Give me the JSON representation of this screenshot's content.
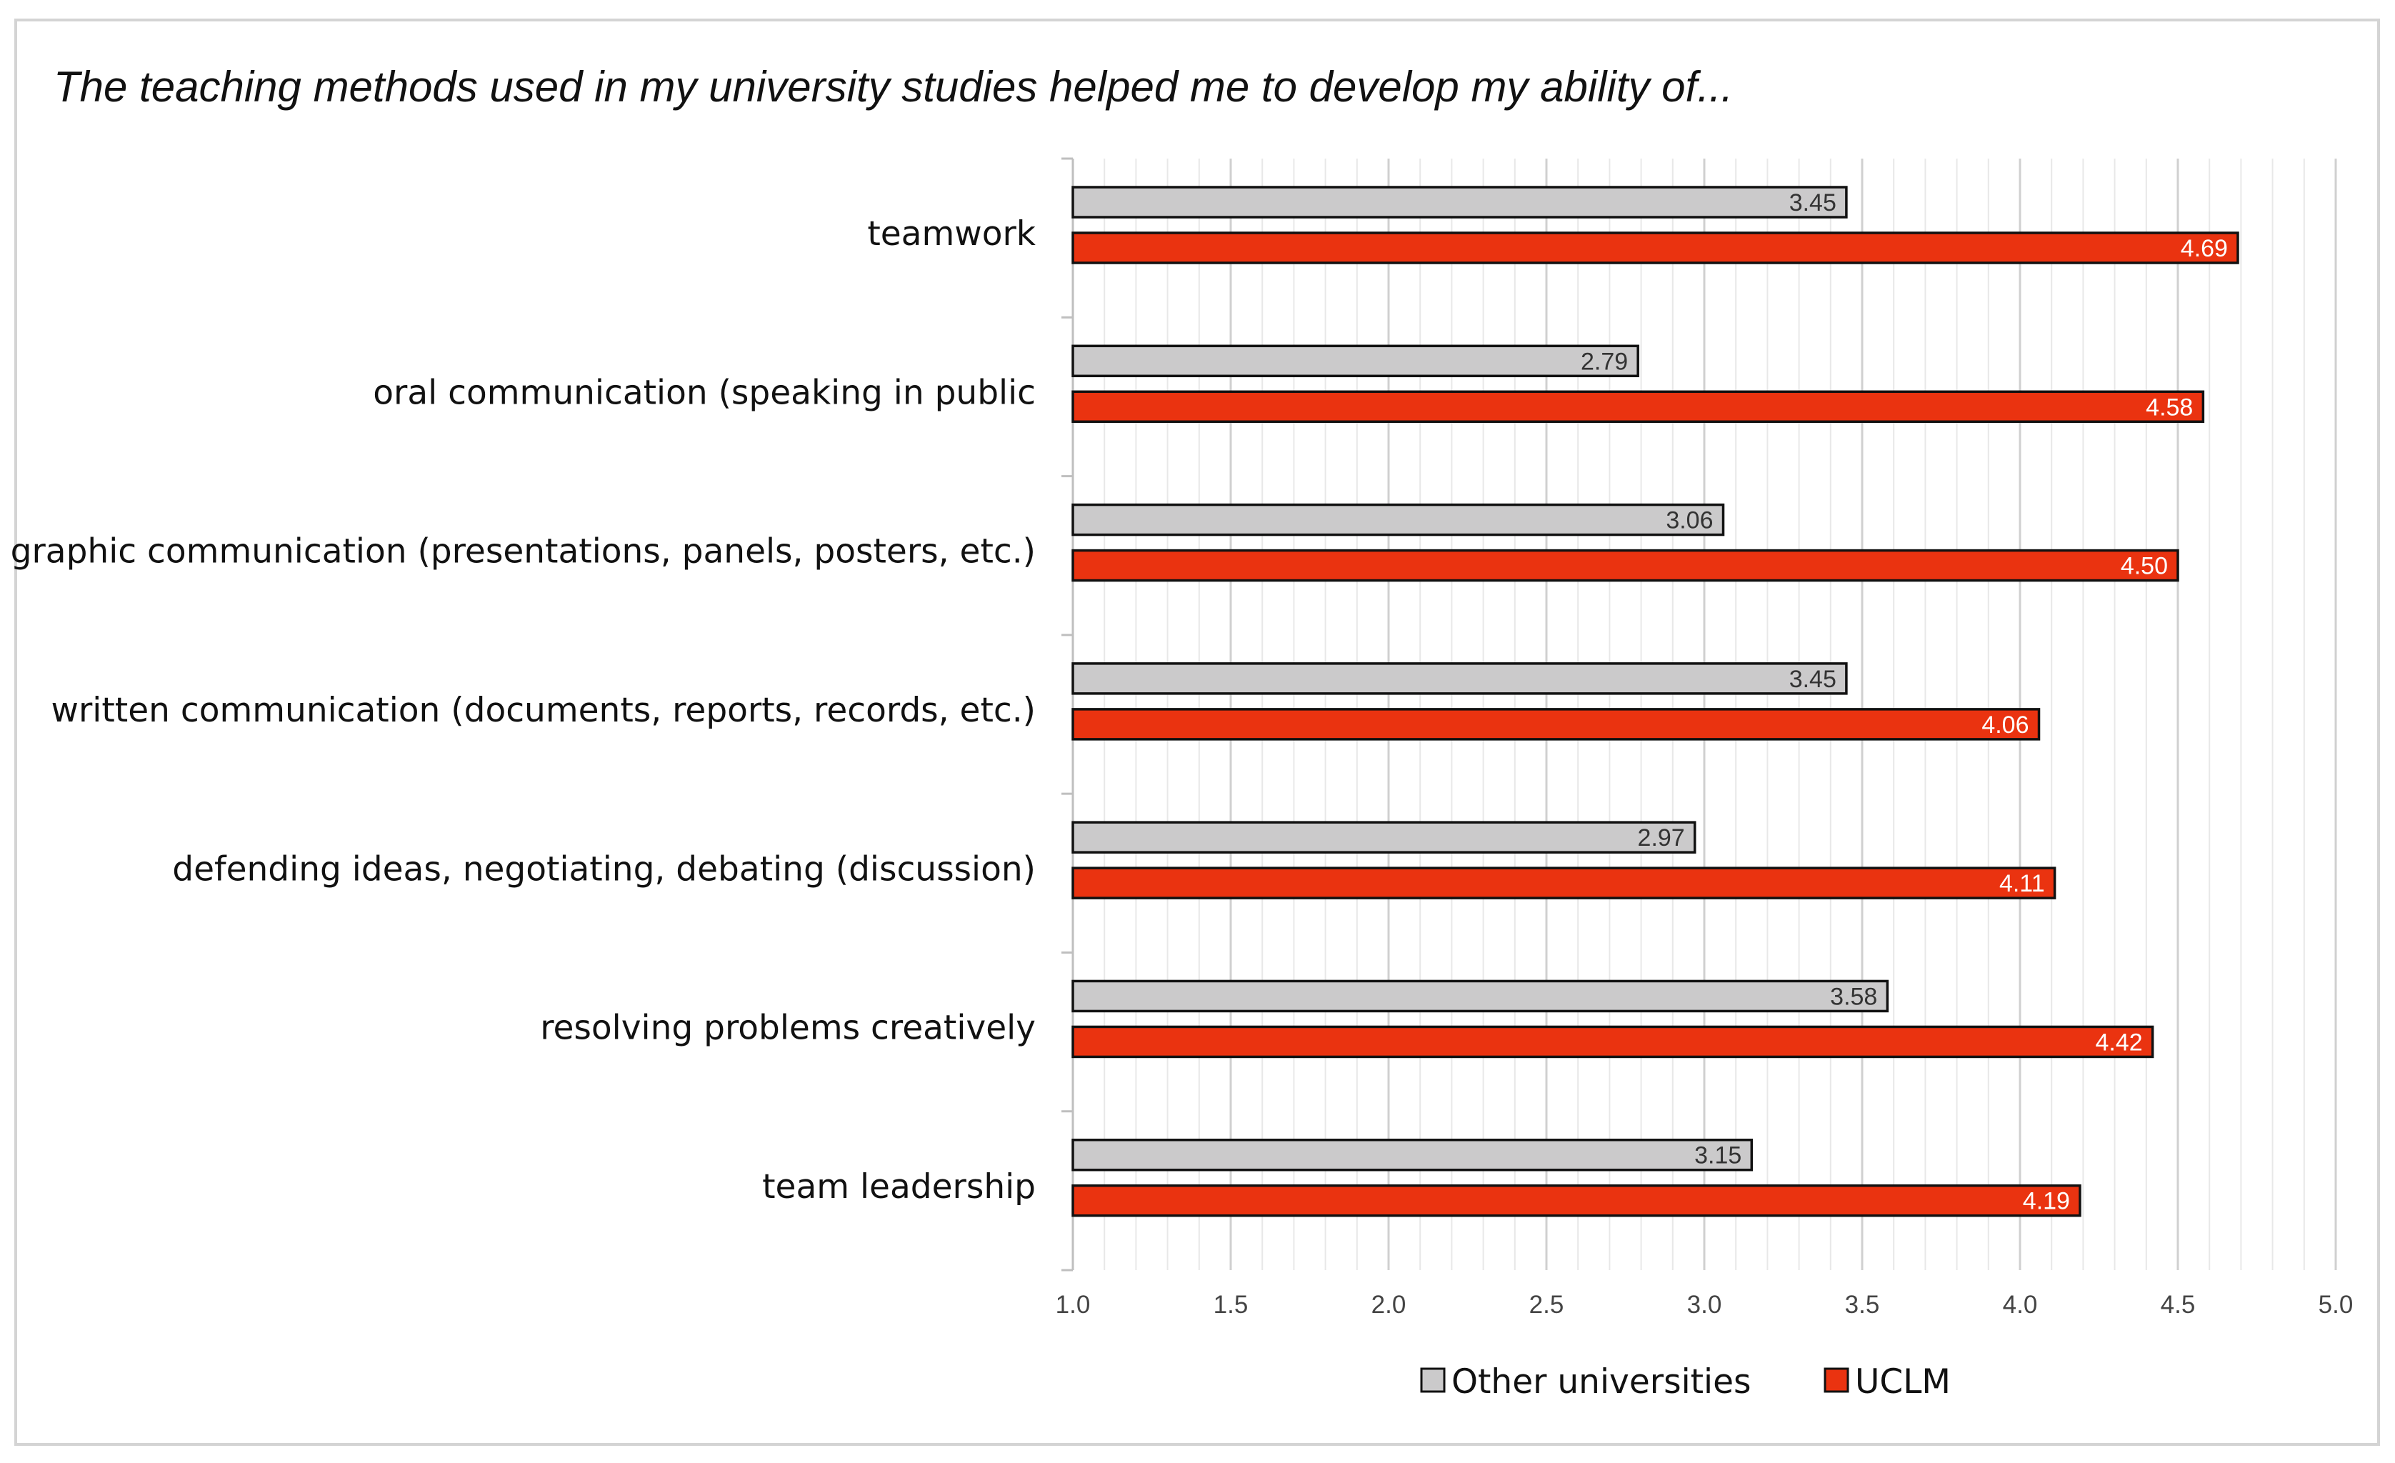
{
  "chart_data": {
    "type": "bar",
    "orientation": "horizontal",
    "title": "The teaching methods used in my university studies helped me to develop my ability of...",
    "categories": [
      "teamwork",
      "oral communication (speaking in public",
      "graphic communication (presentations, panels, posters, etc.)",
      "written communication (documents, reports, records, etc.)",
      "defending ideas, negotiating, debating (discussion)",
      "resolving problems creatively",
      "team leadership"
    ],
    "series": [
      {
        "name": "Other universities",
        "color": "#cbcacb",
        "label_color": "#333333",
        "values": [
          3.45,
          2.79,
          3.06,
          3.45,
          2.97,
          3.58,
          3.15
        ],
        "labels": [
          "3.45",
          "2.79",
          "3.06",
          "3.45",
          "2.97",
          "3.58",
          "3.15"
        ]
      },
      {
        "name": "UCLM",
        "color": "#ea3310",
        "label_color": "#ffffff",
        "values": [
          4.69,
          4.58,
          4.5,
          4.06,
          4.11,
          4.42,
          4.19
        ],
        "labels": [
          "4.69",
          "4.58",
          "4.50",
          "4.06",
          "4.11",
          "4.42",
          "4.19"
        ]
      }
    ],
    "xlim": [
      1.0,
      5.0
    ],
    "xticks": [
      1.0,
      1.5,
      2.0,
      2.5,
      3.0,
      3.5,
      4.0,
      4.5,
      5.0
    ],
    "xtick_labels": [
      "1.0",
      "1.5",
      "2.0",
      "2.5",
      "3.0",
      "3.5",
      "4.0",
      "4.5",
      "5.0"
    ],
    "minor_step": 0.1,
    "xlabel": "",
    "ylabel": "",
    "grid": true,
    "legend_position": "bottom"
  }
}
